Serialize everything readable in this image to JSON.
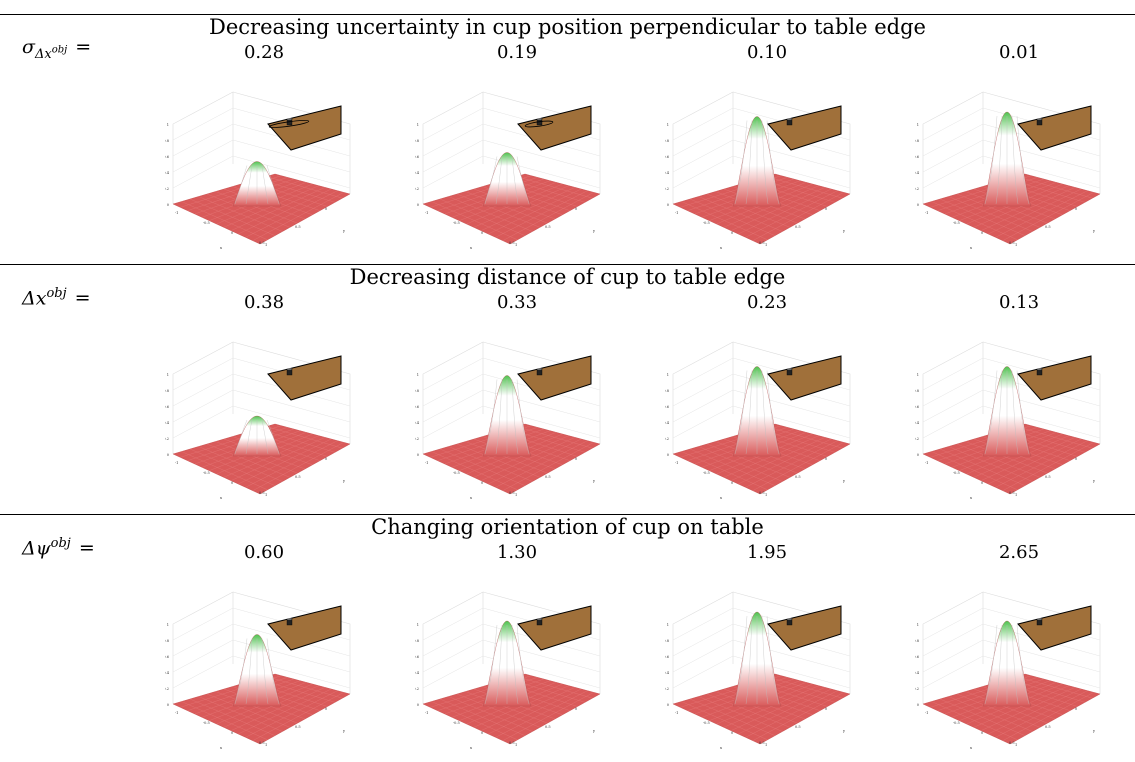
{
  "rows": [
    {
      "title": "Decreasing uncertainty in cup position perpendicular to table edge",
      "label_symbol": "σ",
      "label_sub": "Δx",
      "label_sup": "obj",
      "label_eq": "=",
      "values": [
        "0.28",
        "0.19",
        "0.10",
        "0.01"
      ],
      "peak_heights": [
        0.45,
        0.55,
        0.95,
        1.0
      ]
    },
    {
      "title": "Decreasing distance of cup to table edge",
      "label_symbol": "Δx",
      "label_sub": "",
      "label_sup": "obj",
      "label_eq": "=",
      "values": [
        "0.38",
        "0.33",
        "0.23",
        "0.13"
      ],
      "peak_heights": [
        0.4,
        0.85,
        0.95,
        0.95
      ]
    },
    {
      "title": "Changing orientation of cup on table",
      "label_symbol": "Δψ",
      "label_sub": "",
      "label_sup": "obj",
      "label_eq": "=",
      "values": [
        "0.60",
        "1.30",
        "1.95",
        "2.65"
      ],
      "peak_heights": [
        0.75,
        0.9,
        1.0,
        0.9
      ]
    }
  ],
  "colors": {
    "floor": "#d95a5a",
    "table": "#a0703a",
    "peak_top": "#4fc24f"
  }
}
